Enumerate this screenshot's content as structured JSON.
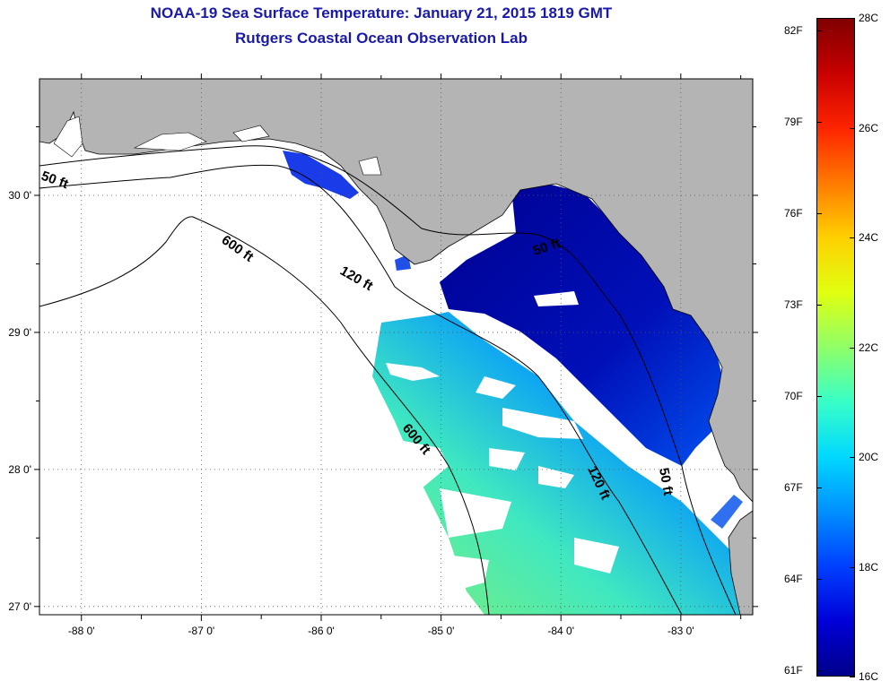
{
  "title": "NOAA-19 Sea Surface Temperature:  January 21, 2015 1819 GMT",
  "subtitle": "Rutgers Coastal Ocean Observation Lab",
  "map": {
    "lon_range": [
      -88.35,
      -82.4
    ],
    "lat_range": [
      26.94,
      30.85
    ],
    "lon_ticks": [
      {
        "value": -88,
        "label": "-88 0'"
      },
      {
        "value": -87,
        "label": "-87 0'"
      },
      {
        "value": -86,
        "label": "-86 0'"
      },
      {
        "value": -85,
        "label": "-85 0'"
      },
      {
        "value": -84,
        "label": "-84 0'"
      },
      {
        "value": -83,
        "label": "-83 0'"
      }
    ],
    "lat_ticks": [
      {
        "value": 30,
        "label": "30 0'"
      },
      {
        "value": 29,
        "label": "29 0'"
      },
      {
        "value": 28,
        "label": "28 0'"
      },
      {
        "value": 27,
        "label": "27 0'"
      }
    ],
    "grid": true,
    "land_color": "#b4b4b4",
    "water_nodata_color": "#ffffff",
    "contours": [
      {
        "label": "50 ft"
      },
      {
        "label": "120 ft"
      },
      {
        "label": "600 ft"
      }
    ]
  },
  "colorbar": {
    "colors": [
      "#00008a",
      "#0000d8",
      "#0040ff",
      "#0090ff",
      "#00d8ff",
      "#38ffc8",
      "#90ff68",
      "#e0ff10",
      "#ffd000",
      "#ff7a00",
      "#ff2400",
      "#c80000",
      "#800000"
    ],
    "fahrenheit": [
      {
        "value": 82,
        "label": "82F"
      },
      {
        "value": 79,
        "label": "79F"
      },
      {
        "value": 76,
        "label": "76F"
      },
      {
        "value": 73,
        "label": "73F"
      },
      {
        "value": 70,
        "label": "70F"
      },
      {
        "value": 67,
        "label": "67F"
      },
      {
        "value": 64,
        "label": "64F"
      },
      {
        "value": 61,
        "label": "61F"
      }
    ],
    "celsius": [
      {
        "value": 28,
        "label": "28C"
      },
      {
        "value": 26,
        "label": "26C"
      },
      {
        "value": 24,
        "label": "24C"
      },
      {
        "value": 22,
        "label": "22C"
      },
      {
        "value": 20,
        "label": "20C"
      },
      {
        "value": 18,
        "label": "18C"
      },
      {
        "value": 16,
        "label": "16C"
      }
    ]
  }
}
